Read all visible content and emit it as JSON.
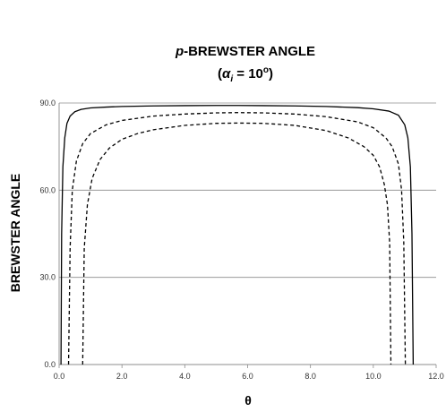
{
  "chart_data": {
    "type": "line",
    "title_prefix": "p",
    "title_rest": "-BREWSTER ANGLE",
    "subtitle_alpha": "α",
    "subtitle_sub": "i",
    "subtitle_value": " = 10",
    "subtitle_sup": "o",
    "xlabel": "θ",
    "ylabel": "BREWSTER ANGLE",
    "xlim": [
      0,
      12
    ],
    "ylim": [
      0,
      90
    ],
    "x_ticks": [
      "0.0",
      "2.0",
      "4.0",
      "6.0",
      "8.0",
      "10.0",
      "12.0"
    ],
    "y_ticks": [
      "0.0",
      "30.0",
      "60.0",
      "90.0"
    ],
    "grid": true,
    "series": [
      {
        "style": "solid",
        "x": [
          0.06,
          0.08,
          0.12,
          0.18,
          0.25,
          0.35,
          0.5,
          0.7,
          1.0,
          1.5,
          2.0,
          3.0,
          4.0,
          5.0,
          5.7,
          6.5,
          7.5,
          8.5,
          9.5,
          10.0,
          10.5,
          10.8,
          11.0,
          11.1,
          11.18,
          11.23,
          11.27
        ],
        "y": [
          0,
          45,
          68,
          78,
          83,
          85.5,
          87,
          87.8,
          88.3,
          88.6,
          88.8,
          89.0,
          89.1,
          89.15,
          89.15,
          89.1,
          89.0,
          88.8,
          88.4,
          88.0,
          87.2,
          85.8,
          82.5,
          78,
          68,
          45,
          0
        ]
      },
      {
        "style": "dashed",
        "x": [
          0.3,
          0.35,
          0.42,
          0.55,
          0.75,
          1.0,
          1.5,
          2.0,
          3.0,
          4.0,
          5.0,
          5.7,
          6.5,
          7.5,
          8.5,
          9.5,
          10.0,
          10.4,
          10.6,
          10.8,
          10.9,
          10.97,
          11.02
        ],
        "y": [
          0,
          40,
          60,
          70,
          76,
          79.5,
          82.5,
          84,
          85.5,
          86.2,
          86.6,
          86.7,
          86.6,
          86.2,
          85.3,
          83.5,
          81.5,
          78,
          75,
          69,
          60,
          42,
          0
        ]
      },
      {
        "style": "dashed",
        "x": [
          0.75,
          0.8,
          0.9,
          1.05,
          1.3,
          1.6,
          2.0,
          2.5,
          3.0,
          4.0,
          5.0,
          5.7,
          6.5,
          7.5,
          8.5,
          9.2,
          9.7,
          10.0,
          10.2,
          10.35,
          10.45,
          10.52,
          10.56
        ],
        "y": [
          0,
          40,
          55,
          64,
          70.5,
          74.5,
          77.5,
          79.5,
          80.8,
          82.3,
          83.0,
          83.1,
          83.0,
          82.3,
          80.5,
          78,
          75,
          72,
          68,
          62,
          55,
          42,
          0
        ]
      }
    ]
  }
}
